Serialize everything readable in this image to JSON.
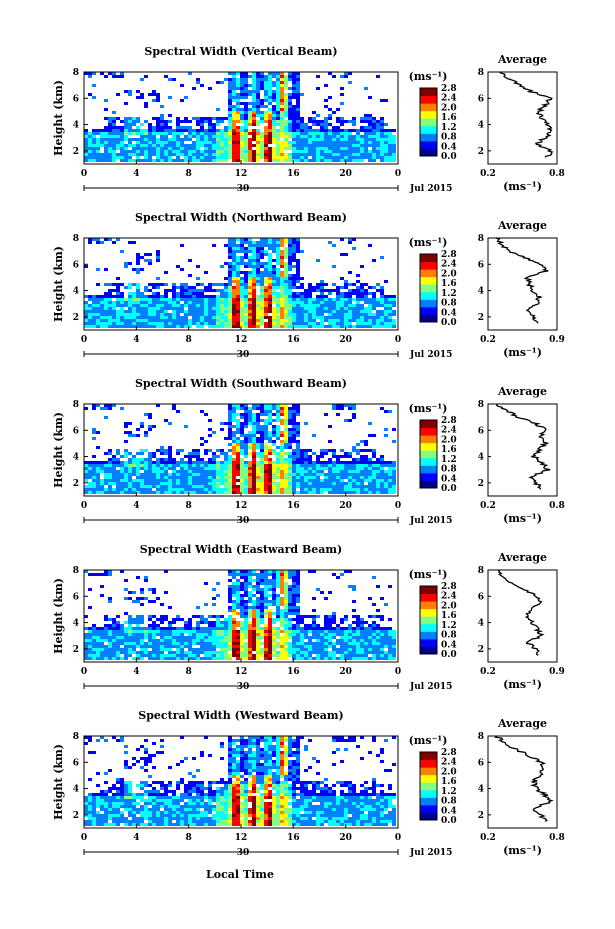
{
  "figure": {
    "date_label": "Jul 2015",
    "xlabel": "Local Time",
    "colorbar_unit": "(ms⁻¹)",
    "colorbar_ticks": [
      "0.0",
      "0.4",
      "0.8",
      "1.2",
      "1.6",
      "2.0",
      "2.4",
      "2.8"
    ],
    "colormap": [
      "#00008f",
      "#0000ff",
      "#0080ff",
      "#00ffff",
      "#80ff80",
      "#ffff00",
      "#ff8000",
      "#ff0000",
      "#800000"
    ]
  },
  "chart_data": [
    {
      "type": "heatmap",
      "title": "Spectral Width (Vertical Beam)",
      "ylabel": "Height (km)",
      "xlabel": "",
      "x_ticks": [
        "0",
        "4",
        "8",
        "12",
        "16",
        "20",
        "0"
      ],
      "x_day_label": "30",
      "xlim": [
        0,
        24
      ],
      "ylim": [
        1,
        8
      ],
      "y_ticks": [
        "2",
        "4",
        "6",
        "8"
      ],
      "profile": {
        "title": "Average",
        "xlabel": "(ms⁻¹)",
        "xlim": [
          0.2,
          0.8
        ],
        "x_ticks": [
          "0.2",
          "0.8"
        ],
        "heights": [
          1.5,
          2.0,
          2.5,
          3.0,
          3.5,
          4.0,
          4.5,
          5.0,
          5.5,
          6.0,
          6.5,
          7.0,
          7.5,
          8.0
        ],
        "values": [
          0.72,
          0.74,
          0.62,
          0.7,
          0.76,
          0.72,
          0.66,
          0.64,
          0.7,
          0.74,
          0.58,
          0.48,
          0.38,
          0.3
        ]
      }
    },
    {
      "type": "heatmap",
      "title": "Spectral Width (Northward Beam)",
      "ylabel": "Height (km)",
      "xlabel": "",
      "x_ticks": [
        "0",
        "4",
        "8",
        "12",
        "16",
        "20",
        "0"
      ],
      "x_day_label": "30",
      "xlim": [
        0,
        24
      ],
      "ylim": [
        1,
        8
      ],
      "y_ticks": [
        "2",
        "4",
        "6",
        "8"
      ],
      "profile": {
        "title": "Average",
        "xlabel": "(ms⁻¹)",
        "xlim": [
          0.2,
          0.9
        ],
        "x_ticks": [
          "0.2",
          "0.9"
        ],
        "heights": [
          1.5,
          2.0,
          2.5,
          3.0,
          3.5,
          4.0,
          4.5,
          5.0,
          5.5,
          6.0,
          6.5,
          7.0,
          7.5,
          8.0
        ],
        "values": [
          0.7,
          0.66,
          0.6,
          0.7,
          0.72,
          0.66,
          0.62,
          0.6,
          0.8,
          0.74,
          0.58,
          0.42,
          0.34,
          0.28
        ]
      }
    },
    {
      "type": "heatmap",
      "title": "Spectral Width (Southward Beam)",
      "ylabel": "Height (km)",
      "xlabel": "",
      "x_ticks": [
        "0",
        "4",
        "8",
        "12",
        "16",
        "20",
        "0"
      ],
      "x_day_label": "30",
      "xlim": [
        0,
        24
      ],
      "ylim": [
        1,
        8
      ],
      "y_ticks": [
        "2",
        "4",
        "6",
        "8"
      ],
      "profile": {
        "title": "Average",
        "xlabel": "(ms⁻¹)",
        "xlim": [
          0.2,
          0.8
        ],
        "x_ticks": [
          "0.2",
          "0.8"
        ],
        "heights": [
          1.5,
          2.0,
          2.5,
          3.0,
          3.5,
          4.0,
          4.5,
          5.0,
          5.5,
          6.0,
          6.5,
          7.0,
          7.5,
          8.0
        ],
        "values": [
          0.66,
          0.62,
          0.58,
          0.72,
          0.68,
          0.6,
          0.64,
          0.7,
          0.66,
          0.7,
          0.62,
          0.46,
          0.36,
          0.28
        ]
      }
    },
    {
      "type": "heatmap",
      "title": "Spectral Width (Eastward Beam)",
      "ylabel": "Height (km)",
      "xlabel": "",
      "x_ticks": [
        "0",
        "4",
        "8",
        "12",
        "16",
        "20",
        "0"
      ],
      "x_day_label": "30",
      "xlim": [
        0,
        24
      ],
      "ylim": [
        1,
        8
      ],
      "y_ticks": [
        "2",
        "4",
        "6",
        "8"
      ],
      "profile": {
        "title": "Average",
        "xlabel": "(ms⁻¹)",
        "xlim": [
          0.2,
          0.9
        ],
        "x_ticks": [
          "0.2",
          "0.9"
        ],
        "heights": [
          1.5,
          2.0,
          2.5,
          3.0,
          3.5,
          4.0,
          4.5,
          5.0,
          5.5,
          6.0,
          6.5,
          7.0,
          7.5,
          8.0
        ],
        "values": [
          0.72,
          0.68,
          0.6,
          0.74,
          0.7,
          0.64,
          0.6,
          0.62,
          0.74,
          0.7,
          0.58,
          0.44,
          0.36,
          0.3
        ]
      }
    },
    {
      "type": "heatmap",
      "title": "Spectral Width (Westward Beam)",
      "ylabel": "Height (km)",
      "xlabel": "Local Time",
      "x_ticks": [
        "0",
        "4",
        "8",
        "12",
        "16",
        "20",
        "0"
      ],
      "x_day_label": "30",
      "xlim": [
        0,
        24
      ],
      "ylim": [
        1,
        8
      ],
      "y_ticks": [
        "2",
        "4",
        "6",
        "8"
      ],
      "profile": {
        "title": "Average",
        "xlabel": "(ms⁻¹)",
        "xlim": [
          0.2,
          0.8
        ],
        "x_ticks": [
          "0.2",
          "0.8"
        ],
        "heights": [
          1.5,
          2.0,
          2.5,
          3.0,
          3.5,
          4.0,
          4.5,
          5.0,
          5.5,
          6.0,
          6.5,
          7.0,
          7.5,
          8.0
        ],
        "values": [
          0.7,
          0.66,
          0.6,
          0.74,
          0.7,
          0.62,
          0.6,
          0.64,
          0.7,
          0.66,
          0.56,
          0.44,
          0.34,
          0.28
        ]
      }
    }
  ]
}
